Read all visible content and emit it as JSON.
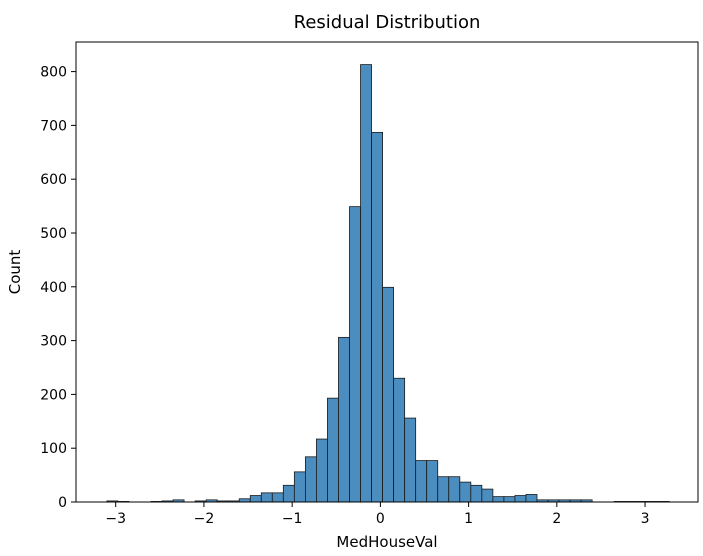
{
  "chart_data": {
    "type": "bar",
    "title": "Residual Distribution",
    "xlabel": "MedHouseVal",
    "ylabel": "Count",
    "xlim": [
      -3.45,
      3.6
    ],
    "ylim": [
      0,
      855
    ],
    "xticks": [
      -3,
      -2,
      -1,
      0,
      1,
      2,
      3
    ],
    "xtick_labels": [
      "−3",
      "−2",
      "−1",
      "0",
      "1",
      "2",
      "3"
    ],
    "yticks": [
      0,
      100,
      200,
      300,
      400,
      500,
      600,
      700,
      800
    ],
    "grid": false,
    "bar_color": "#4c8dc0",
    "bar_edge_color": "#1a1a1a",
    "bins": [
      {
        "x0": -3.1,
        "x1": -2.975,
        "count": 2
      },
      {
        "x0": -2.975,
        "x1": -2.85,
        "count": 1
      },
      {
        "x0": -2.6,
        "x1": -2.475,
        "count": 1
      },
      {
        "x0": -2.475,
        "x1": -2.35,
        "count": 2
      },
      {
        "x0": -2.35,
        "x1": -2.225,
        "count": 4
      },
      {
        "x0": -2.1,
        "x1": -1.975,
        "count": 2
      },
      {
        "x0": -1.975,
        "x1": -1.85,
        "count": 4
      },
      {
        "x0": -1.85,
        "x1": -1.725,
        "count": 2
      },
      {
        "x0": -1.725,
        "x1": -1.6,
        "count": 2
      },
      {
        "x0": -1.6,
        "x1": -1.475,
        "count": 6
      },
      {
        "x0": -1.475,
        "x1": -1.35,
        "count": 12
      },
      {
        "x0": -1.35,
        "x1": -1.225,
        "count": 17
      },
      {
        "x0": -1.225,
        "x1": -1.1,
        "count": 17
      },
      {
        "x0": -1.1,
        "x1": -0.975,
        "count": 31
      },
      {
        "x0": -0.975,
        "x1": -0.85,
        "count": 56
      },
      {
        "x0": -0.85,
        "x1": -0.725,
        "count": 84
      },
      {
        "x0": -0.725,
        "x1": -0.6,
        "count": 117
      },
      {
        "x0": -0.6,
        "x1": -0.475,
        "count": 193
      },
      {
        "x0": -0.475,
        "x1": -0.35,
        "count": 306
      },
      {
        "x0": -0.35,
        "x1": -0.225,
        "count": 549
      },
      {
        "x0": -0.225,
        "x1": -0.1,
        "count": 813
      },
      {
        "x0": -0.1,
        "x1": 0.025,
        "count": 687
      },
      {
        "x0": 0.025,
        "x1": 0.15,
        "count": 399
      },
      {
        "x0": 0.15,
        "x1": 0.275,
        "count": 230
      },
      {
        "x0": 0.275,
        "x1": 0.4,
        "count": 156
      },
      {
        "x0": 0.4,
        "x1": 0.525,
        "count": 77
      },
      {
        "x0": 0.525,
        "x1": 0.65,
        "count": 77
      },
      {
        "x0": 0.65,
        "x1": 0.775,
        "count": 47
      },
      {
        "x0": 0.775,
        "x1": 0.9,
        "count": 47
      },
      {
        "x0": 0.9,
        "x1": 1.025,
        "count": 37
      },
      {
        "x0": 1.025,
        "x1": 1.15,
        "count": 31
      },
      {
        "x0": 1.15,
        "x1": 1.275,
        "count": 24
      },
      {
        "x0": 1.275,
        "x1": 1.4,
        "count": 10
      },
      {
        "x0": 1.4,
        "x1": 1.525,
        "count": 10
      },
      {
        "x0": 1.525,
        "x1": 1.65,
        "count": 12
      },
      {
        "x0": 1.65,
        "x1": 1.775,
        "count": 14
      },
      {
        "x0": 1.775,
        "x1": 1.9,
        "count": 4
      },
      {
        "x0": 1.9,
        "x1": 2.025,
        "count": 4
      },
      {
        "x0": 2.025,
        "x1": 2.15,
        "count": 4
      },
      {
        "x0": 2.15,
        "x1": 2.275,
        "count": 4
      },
      {
        "x0": 2.275,
        "x1": 2.4,
        "count": 4
      },
      {
        "x0": 2.65,
        "x1": 2.775,
        "count": 1
      },
      {
        "x0": 2.775,
        "x1": 2.9,
        "count": 1
      },
      {
        "x0": 2.9,
        "x1": 3.025,
        "count": 1
      },
      {
        "x0": 3.025,
        "x1": 3.15,
        "count": 1
      },
      {
        "x0": 3.15,
        "x1": 3.275,
        "count": 1
      }
    ]
  }
}
